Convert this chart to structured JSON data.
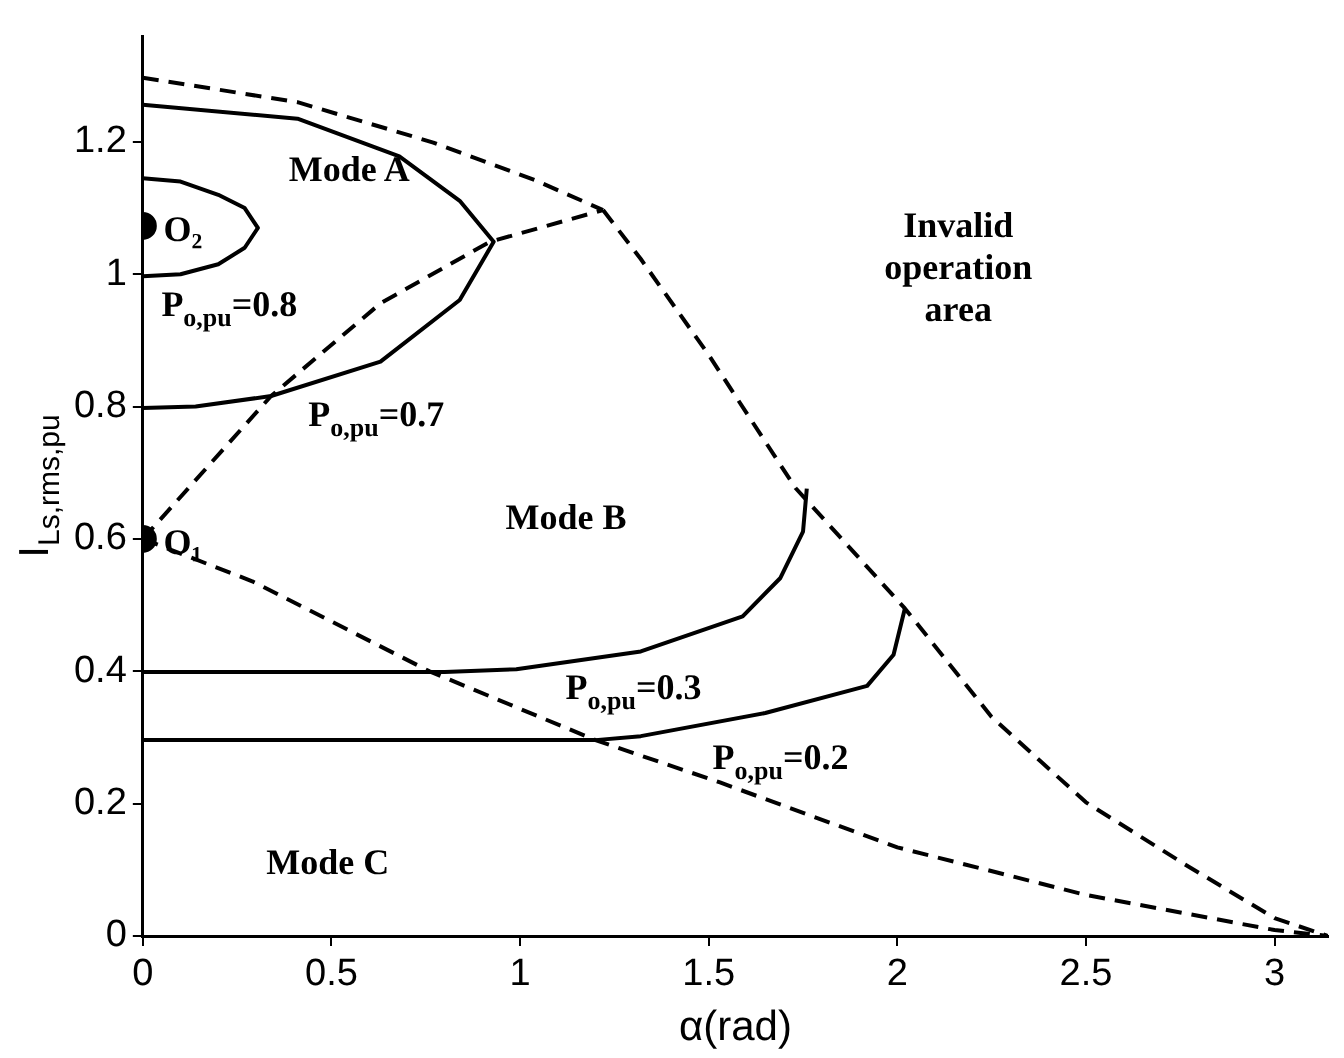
{
  "chart_data": {
    "type": "line",
    "xlabel": "α(rad)",
    "ylabel": "I$_{Ls,rms,pu}$",
    "xlim": [
      0,
      3.1416
    ],
    "xticks": [
      0,
      0.5,
      1,
      1.5,
      2,
      2.5,
      3
    ],
    "ylim": [
      0,
      1.36
    ],
    "yticks": [
      0,
      0.2,
      0.4,
      0.6,
      0.8,
      1,
      1.2
    ],
    "grid": false,
    "legend": false,
    "series": [
      {
        "color": "#000000",
        "line_style": "solid",
        "x": [
          0,
          0.1,
          0.2,
          0.27,
          0.305,
          0.27,
          0.2,
          0.1,
          0
        ],
        "values": [
          1.145,
          1.14,
          1.12,
          1.1,
          1.07,
          1.04,
          1.015,
          1.0,
          0.997
        ]
      },
      {
        "color": "#000000",
        "line_style": "solid",
        "x": [
          0,
          0.41,
          0.68,
          0.84,
          0.93,
          0.84,
          0.63,
          0.34,
          0.14,
          0
        ],
        "values": [
          1.256,
          1.235,
          1.178,
          1.111,
          1.049,
          0.961,
          0.868,
          0.816,
          0.8,
          0.798
        ]
      },
      {
        "color": "#000000",
        "line_style": "solid",
        "x": [
          0,
          0.8,
          0.99,
          1.32,
          1.59,
          1.69,
          1.75,
          1.76
        ],
        "values": [
          0.399,
          0.399,
          0.403,
          0.43,
          0.483,
          0.541,
          0.611,
          0.676
        ]
      },
      {
        "color": "#000000",
        "line_style": "solid",
        "x": [
          0,
          1.2,
          1.32,
          1.65,
          1.92,
          1.99,
          2.02
        ],
        "values": [
          0.296,
          0.296,
          0.302,
          0.337,
          0.378,
          0.425,
          0.495
        ]
      },
      {
        "color": "#000000",
        "line_style": "dashed",
        "x": [
          0,
          0.41,
          0.77,
          1.04,
          1.22
        ],
        "values": [
          1.297,
          1.26,
          1.199,
          1.142,
          1.097
        ]
      },
      {
        "color": "#000000",
        "line_style": "dashed",
        "x": [
          0,
          0.34,
          0.63,
          0.92,
          1.22
        ],
        "values": [
          0.6,
          0.816,
          0.956,
          1.049,
          1.097
        ]
      },
      {
        "color": "#000000",
        "line_style": "dashed",
        "x": [
          1.22,
          1.32,
          1.5,
          1.73,
          2.02,
          2.25,
          2.5,
          2.76,
          3.0,
          3.1416
        ],
        "values": [
          1.097,
          1.023,
          0.878,
          0.677,
          0.495,
          0.331,
          0.202,
          0.109,
          0.027,
          0
        ]
      },
      {
        "color": "#000000",
        "line_style": "dashed",
        "x": [
          0,
          0.29,
          0.76,
          1.2,
          1.53,
          2.0,
          2.5,
          3.0,
          3.1416
        ],
        "values": [
          0.6,
          0.536,
          0.4,
          0.296,
          0.232,
          0.134,
          0.062,
          0.009,
          0
        ]
      },
      {
        "type": "scatter",
        "marker": "circle",
        "color": "#000000",
        "x": [
          0,
          0
        ],
        "values": [
          0.6,
          1.073
        ]
      }
    ],
    "annotations": [
      {
        "text": "O₂",
        "x": 0,
        "y": 1.073
      },
      {
        "text": "O₁",
        "x": 0,
        "y": 0.6
      },
      "Mode A",
      "Mode B",
      "Mode C",
      "Invalid operation area",
      "P$_{o,pu}$=0.8",
      "P$_{o,pu}$=0.7",
      "P$_{o,pu}$=0.3",
      "P$_{o,pu}$=0.2"
    ]
  }
}
